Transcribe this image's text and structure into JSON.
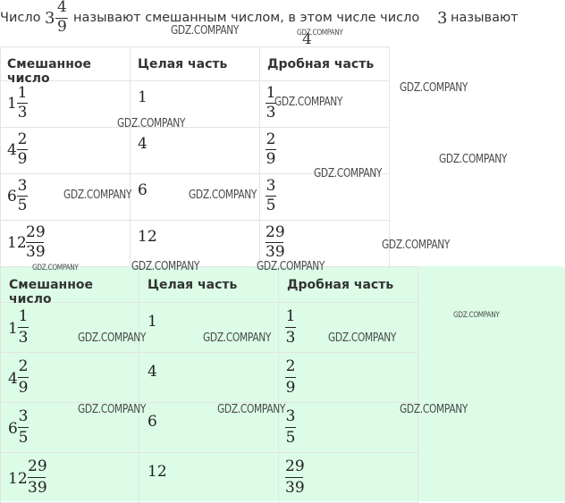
{
  "heading": {
    "prefix": "Число",
    "whole": "3",
    "numerator": "4",
    "denominator": "9",
    "middle": "называют смешанным числом, в этом числе число",
    "number": "3",
    "suffix": "называют",
    "cut_off_digit": "4"
  },
  "table_top": {
    "headers": [
      "Смешанное число",
      "Целая часть",
      "Дробная часть"
    ],
    "rows": [
      {
        "whole": "1",
        "num": "1",
        "den": "3",
        "int": "1",
        "fnum": "1",
        "fden": "3"
      },
      {
        "whole": "4",
        "num": "2",
        "den": "9",
        "int": "4",
        "fnum": "2",
        "fden": "9"
      },
      {
        "whole": "6",
        "num": "3",
        "den": "5",
        "int": "6",
        "fnum": "3",
        "fden": "5"
      },
      {
        "whole": "12",
        "num": "29",
        "den": "39",
        "int": "12",
        "fnum": "29",
        "fden": "39"
      }
    ]
  },
  "table_bottom": {
    "headers": [
      "Смешанное число",
      "Целая часть",
      "Дробная часть"
    ],
    "rows": [
      {
        "whole": "1",
        "num": "1",
        "den": "3",
        "int": "1",
        "fnum": "1",
        "fden": "3"
      },
      {
        "whole": "4",
        "num": "2",
        "den": "9",
        "int": "4",
        "fnum": "2",
        "fden": "9"
      },
      {
        "whole": "6",
        "num": "3",
        "den": "5",
        "int": "6",
        "fnum": "3",
        "fden": "5"
      },
      {
        "whole": "12",
        "num": "29",
        "den": "39",
        "int": "12",
        "fnum": "29",
        "fden": "39"
      }
    ]
  },
  "watermark": "GDZ.COMPANY",
  "colors": {
    "highlight": "#dcfce8",
    "border": "#e3e3e3"
  }
}
